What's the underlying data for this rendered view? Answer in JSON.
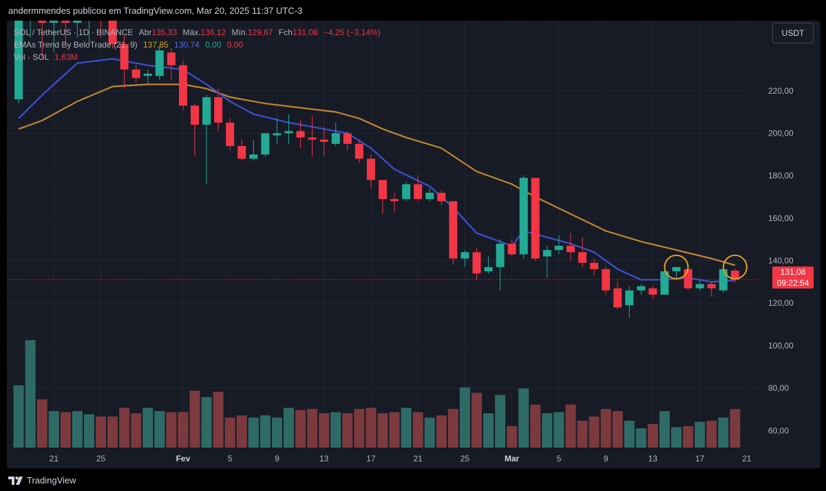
{
  "header": {
    "published_by": "andermmendes publicou em TradingView.com, Mar 20, 2025 11:37 UTC-3"
  },
  "legend": {
    "symbol": "SOL / TetherUS · 1D · BINANCE",
    "open_label": "Abr",
    "open": "135,33",
    "high_label": "Máx.",
    "high": "136,12",
    "low_label": "Mín.",
    "low": "129,67",
    "close_label": "Fch",
    "close": "131,08",
    "change": "−4,25 (−3,14%)",
    "ema_name": "EMAs Trend By BeloTrade (21, 9)",
    "ema_slow": "137,85",
    "ema_fast": "130,74",
    "ema_v3": "0,00",
    "ema_v4": "0,00",
    "vol_name": "Vol · SOL",
    "vol_value": "1,63M"
  },
  "currency_button": "USDT",
  "price_tag": {
    "price": "131,08",
    "countdown": "09:22:54"
  },
  "footer": {
    "brand": "TradingView"
  },
  "colors": {
    "up": "#22ab94",
    "down": "#f23645",
    "up_volume": "#2f6b66",
    "down_volume": "#7c3a3e",
    "ema_fast": "#3c51d6",
    "ema_slow": "#c1862d",
    "background": "#171b26",
    "grid": "#232632",
    "annotation_circle": "#e6a020"
  },
  "chart_data": {
    "type": "candlestick",
    "symbol": "SOL/USDT",
    "timeframe": "1D",
    "y_ticks": [
      "60,00",
      "80,00",
      "100,00",
      "120,00",
      "140,00",
      "160,00",
      "180,00",
      "200,00",
      "220,00"
    ],
    "x_ticks": [
      {
        "label": "21",
        "date": "2025-01-21"
      },
      {
        "label": "25",
        "date": "2025-01-25"
      },
      {
        "label": "Fev",
        "date": "2025-02-01"
      },
      {
        "label": "5",
        "date": "2025-02-05"
      },
      {
        "label": "9",
        "date": "2025-02-09"
      },
      {
        "label": "13",
        "date": "2025-02-13"
      },
      {
        "label": "17",
        "date": "2025-02-17"
      },
      {
        "label": "21",
        "date": "2025-02-21"
      },
      {
        "label": "25",
        "date": "2025-02-25"
      },
      {
        "label": "Mar",
        "date": "2025-03-01"
      },
      {
        "label": "5",
        "date": "2025-03-05"
      },
      {
        "label": "9",
        "date": "2025-03-09"
      },
      {
        "label": "13",
        "date": "2025-03-13"
      },
      {
        "label": "17",
        "date": "2025-03-17"
      },
      {
        "label": "21",
        "date": "2025-03-21"
      }
    ],
    "y_range": [
      52,
      253
    ],
    "x_range": [
      "2025-01-17",
      "2025-03-22"
    ],
    "candles": [
      {
        "date": "2025-01-18",
        "o": 216,
        "h": 260,
        "l": 214,
        "c": 257
      },
      {
        "date": "2025-01-19",
        "o": 257,
        "h": 295,
        "l": 245,
        "c": 258
      },
      {
        "date": "2025-01-20",
        "o": 258,
        "h": 265,
        "l": 235,
        "c": 252
      },
      {
        "date": "2025-01-21",
        "o": 252,
        "h": 262,
        "l": 238,
        "c": 255
      },
      {
        "date": "2025-01-22",
        "o": 255,
        "h": 258,
        "l": 242,
        "c": 252
      },
      {
        "date": "2025-01-23",
        "o": 252,
        "h": 262,
        "l": 245,
        "c": 253
      },
      {
        "date": "2025-01-24",
        "o": 253,
        "h": 260,
        "l": 242,
        "c": 256
      },
      {
        "date": "2025-01-25",
        "o": 256,
        "h": 258,
        "l": 245,
        "c": 253
      },
      {
        "date": "2025-01-26",
        "o": 253,
        "h": 256,
        "l": 240,
        "c": 242
      },
      {
        "date": "2025-01-27",
        "o": 242,
        "h": 246,
        "l": 221,
        "c": 230
      },
      {
        "date": "2025-01-28",
        "o": 230,
        "h": 232,
        "l": 224,
        "c": 226
      },
      {
        "date": "2025-01-29",
        "o": 227,
        "h": 230,
        "l": 223,
        "c": 228
      },
      {
        "date": "2025-01-30",
        "o": 227,
        "h": 241,
        "l": 225,
        "c": 239
      },
      {
        "date": "2025-01-31",
        "o": 238,
        "h": 240,
        "l": 225,
        "c": 232
      },
      {
        "date": "2025-02-01",
        "o": 232,
        "h": 234,
        "l": 211,
        "c": 213
      },
      {
        "date": "2025-02-02",
        "o": 213,
        "h": 214,
        "l": 189,
        "c": 204
      },
      {
        "date": "2025-02-03",
        "o": 204,
        "h": 218,
        "l": 176,
        "c": 217
      },
      {
        "date": "2025-02-04",
        "o": 217,
        "h": 221,
        "l": 201,
        "c": 205
      },
      {
        "date": "2025-02-05",
        "o": 205,
        "h": 207,
        "l": 192,
        "c": 194
      },
      {
        "date": "2025-02-06",
        "o": 194,
        "h": 197,
        "l": 187,
        "c": 188
      },
      {
        "date": "2025-02-07",
        "o": 188,
        "h": 197,
        "l": 187,
        "c": 190
      },
      {
        "date": "2025-02-08",
        "o": 190,
        "h": 200,
        "l": 189,
        "c": 200
      },
      {
        "date": "2025-02-09",
        "o": 199,
        "h": 207,
        "l": 195,
        "c": 200
      },
      {
        "date": "2025-02-10",
        "o": 200,
        "h": 209,
        "l": 195,
        "c": 201
      },
      {
        "date": "2025-02-11",
        "o": 201,
        "h": 206,
        "l": 193,
        "c": 198
      },
      {
        "date": "2025-02-12",
        "o": 198,
        "h": 208,
        "l": 189,
        "c": 197
      },
      {
        "date": "2025-02-13",
        "o": 197,
        "h": 203,
        "l": 189,
        "c": 196
      },
      {
        "date": "2025-02-14",
        "o": 195,
        "h": 205,
        "l": 194,
        "c": 200
      },
      {
        "date": "2025-02-15",
        "o": 200,
        "h": 201,
        "l": 192,
        "c": 195
      },
      {
        "date": "2025-02-16",
        "o": 195,
        "h": 197,
        "l": 186,
        "c": 188
      },
      {
        "date": "2025-02-17",
        "o": 188,
        "h": 190,
        "l": 174,
        "c": 178
      },
      {
        "date": "2025-02-18",
        "o": 178,
        "h": 178,
        "l": 162,
        "c": 169
      },
      {
        "date": "2025-02-19",
        "o": 169,
        "h": 172,
        "l": 163,
        "c": 168
      },
      {
        "date": "2025-02-20",
        "o": 169,
        "h": 177,
        "l": 168,
        "c": 176
      },
      {
        "date": "2025-02-21",
        "o": 176,
        "h": 180,
        "l": 168,
        "c": 169
      },
      {
        "date": "2025-02-22",
        "o": 169,
        "h": 174,
        "l": 168,
        "c": 172
      },
      {
        "date": "2025-02-23",
        "o": 172,
        "h": 173,
        "l": 166,
        "c": 168
      },
      {
        "date": "2025-02-24",
        "o": 168,
        "h": 168,
        "l": 138,
        "c": 141
      },
      {
        "date": "2025-02-25",
        "o": 141,
        "h": 145,
        "l": 137,
        "c": 144
      },
      {
        "date": "2025-02-26",
        "o": 144,
        "h": 146,
        "l": 131,
        "c": 134
      },
      {
        "date": "2025-02-27",
        "o": 135,
        "h": 142,
        "l": 134,
        "c": 137
      },
      {
        "date": "2025-02-28",
        "o": 137,
        "h": 150,
        "l": 126,
        "c": 148
      },
      {
        "date": "2025-03-01",
        "o": 148,
        "h": 150,
        "l": 142,
        "c": 143
      },
      {
        "date": "2025-03-02",
        "o": 143,
        "h": 180,
        "l": 141,
        "c": 179
      },
      {
        "date": "2025-03-03",
        "o": 179,
        "h": 179,
        "l": 140,
        "c": 141
      },
      {
        "date": "2025-03-04",
        "o": 142,
        "h": 147,
        "l": 132,
        "c": 145
      },
      {
        "date": "2025-03-05",
        "o": 145,
        "h": 152,
        "l": 143,
        "c": 147
      },
      {
        "date": "2025-03-06",
        "o": 147,
        "h": 153,
        "l": 140,
        "c": 144
      },
      {
        "date": "2025-03-07",
        "o": 144,
        "h": 151,
        "l": 137,
        "c": 139
      },
      {
        "date": "2025-03-08",
        "o": 139,
        "h": 141,
        "l": 133,
        "c": 136
      },
      {
        "date": "2025-03-09",
        "o": 136,
        "h": 137,
        "l": 124,
        "c": 126
      },
      {
        "date": "2025-03-10",
        "o": 127,
        "h": 130,
        "l": 117,
        "c": 118
      },
      {
        "date": "2025-03-11",
        "o": 119,
        "h": 128,
        "l": 113,
        "c": 126
      },
      {
        "date": "2025-03-12",
        "o": 126,
        "h": 129,
        "l": 124,
        "c": 128
      },
      {
        "date": "2025-03-13",
        "o": 127,
        "h": 128,
        "l": 122,
        "c": 124
      },
      {
        "date": "2025-03-14",
        "o": 124,
        "h": 136,
        "l": 124,
        "c": 135
      },
      {
        "date": "2025-03-15",
        "o": 135,
        "h": 137,
        "l": 132,
        "c": 137
      },
      {
        "date": "2025-03-16",
        "o": 136,
        "h": 136,
        "l": 126,
        "c": 127
      },
      {
        "date": "2025-03-17",
        "o": 127,
        "h": 131,
        "l": 126,
        "c": 129
      },
      {
        "date": "2025-03-18",
        "o": 129,
        "h": 130,
        "l": 123,
        "c": 127
      },
      {
        "date": "2025-03-19",
        "o": 126,
        "h": 137,
        "l": 125,
        "c": 136
      },
      {
        "date": "2025-03-20",
        "o": 135.33,
        "h": 136.12,
        "l": 129.67,
        "c": 131.08
      }
    ],
    "volume_relative": [
      0.58,
      1.0,
      0.45,
      0.34,
      0.33,
      0.34,
      0.31,
      0.29,
      0.29,
      0.37,
      0.32,
      0.37,
      0.34,
      0.33,
      0.33,
      0.53,
      0.47,
      0.52,
      0.28,
      0.3,
      0.28,
      0.3,
      0.28,
      0.37,
      0.35,
      0.36,
      0.32,
      0.33,
      0.32,
      0.36,
      0.37,
      0.32,
      0.33,
      0.37,
      0.33,
      0.28,
      0.3,
      0.36,
      0.56,
      0.51,
      0.32,
      0.49,
      0.2,
      0.55,
      0.4,
      0.32,
      0.33,
      0.4,
      0.25,
      0.29,
      0.36,
      0.34,
      0.25,
      0.18,
      0.22,
      0.34,
      0.19,
      0.2,
      0.24,
      0.25,
      0.28,
      0.36,
      0.22
    ],
    "ema_fast": [
      {
        "date": "2025-01-18",
        "v": 207
      },
      {
        "date": "2025-01-20",
        "v": 218
      },
      {
        "date": "2025-01-23",
        "v": 233
      },
      {
        "date": "2025-01-26",
        "v": 235
      },
      {
        "date": "2025-01-29",
        "v": 232
      },
      {
        "date": "2025-02-01",
        "v": 230
      },
      {
        "date": "2025-02-03",
        "v": 223
      },
      {
        "date": "2025-02-05",
        "v": 215
      },
      {
        "date": "2025-02-07",
        "v": 209
      },
      {
        "date": "2025-02-10",
        "v": 205
      },
      {
        "date": "2025-02-13",
        "v": 202
      },
      {
        "date": "2025-02-15",
        "v": 200
      },
      {
        "date": "2025-02-17",
        "v": 193
      },
      {
        "date": "2025-02-19",
        "v": 183
      },
      {
        "date": "2025-02-22",
        "v": 175
      },
      {
        "date": "2025-02-24",
        "v": 165
      },
      {
        "date": "2025-02-26",
        "v": 153
      },
      {
        "date": "2025-03-01",
        "v": 147
      },
      {
        "date": "2025-03-02",
        "v": 154
      },
      {
        "date": "2025-03-04",
        "v": 151
      },
      {
        "date": "2025-03-06",
        "v": 148
      },
      {
        "date": "2025-03-08",
        "v": 144
      },
      {
        "date": "2025-03-10",
        "v": 136
      },
      {
        "date": "2025-03-12",
        "v": 131
      },
      {
        "date": "2025-03-14",
        "v": 131
      },
      {
        "date": "2025-03-16",
        "v": 132
      },
      {
        "date": "2025-03-18",
        "v": 130
      },
      {
        "date": "2025-03-20",
        "v": 130.74
      }
    ],
    "ema_slow": [
      {
        "date": "2025-01-18",
        "v": 202
      },
      {
        "date": "2025-01-20",
        "v": 206
      },
      {
        "date": "2025-01-23",
        "v": 215
      },
      {
        "date": "2025-01-26",
        "v": 222
      },
      {
        "date": "2025-01-29",
        "v": 223
      },
      {
        "date": "2025-02-01",
        "v": 223
      },
      {
        "date": "2025-02-03",
        "v": 221
      },
      {
        "date": "2025-02-05",
        "v": 217
      },
      {
        "date": "2025-02-08",
        "v": 214
      },
      {
        "date": "2025-02-11",
        "v": 212
      },
      {
        "date": "2025-02-14",
        "v": 210
      },
      {
        "date": "2025-02-16",
        "v": 207
      },
      {
        "date": "2025-02-18",
        "v": 202
      },
      {
        "date": "2025-02-20",
        "v": 198
      },
      {
        "date": "2025-02-23",
        "v": 193
      },
      {
        "date": "2025-02-26",
        "v": 182
      },
      {
        "date": "2025-03-01",
        "v": 176
      },
      {
        "date": "2025-03-03",
        "v": 170
      },
      {
        "date": "2025-03-06",
        "v": 162
      },
      {
        "date": "2025-03-09",
        "v": 154
      },
      {
        "date": "2025-03-12",
        "v": 149
      },
      {
        "date": "2025-03-15",
        "v": 145
      },
      {
        "date": "2025-03-18",
        "v": 141
      },
      {
        "date": "2025-03-20",
        "v": 137.85
      }
    ],
    "annotations": [
      {
        "type": "circle",
        "date": "2025-03-15",
        "price": 137
      },
      {
        "type": "circle",
        "date": "2025-03-20",
        "price": 137
      }
    ],
    "last_price": 131.08,
    "grid": true
  }
}
